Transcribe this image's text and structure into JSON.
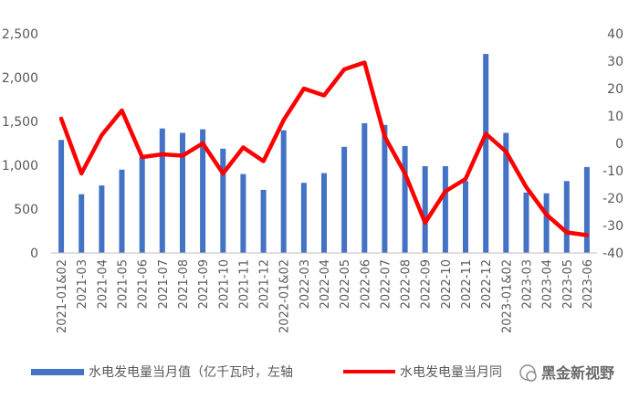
{
  "chart_data": {
    "type": "bar",
    "categories": [
      "2021-01&02",
      "2021-03",
      "2021-04",
      "2021-05",
      "2021-06",
      "2021-07",
      "2021-08",
      "2021-09",
      "2021-10",
      "2021-11",
      "2021-12",
      "2022-01&02",
      "2022-03",
      "2022-04",
      "2022-05",
      "2022-06",
      "2022-07",
      "2022-08",
      "2022-09",
      "2022-10",
      "2022-11",
      "2022-12",
      "2023-01&02",
      "2023-03",
      "2023-04",
      "2023-05",
      "2023-06"
    ],
    "series": [
      {
        "name": "水电发电量当月值（亿千瓦时，左轴",
        "type": "bar",
        "axis": "left",
        "color": "#4472C4",
        "values": [
          1290,
          670,
          770,
          950,
          1100,
          1420,
          1370,
          1410,
          1190,
          900,
          720,
          1400,
          800,
          910,
          1210,
          1480,
          1460,
          1220,
          990,
          990,
          820,
          2270,
          1370,
          690,
          680,
          820,
          980
        ]
      },
      {
        "name": "水电发电量当月同",
        "type": "line",
        "axis": "right",
        "color": "#FF0000",
        "values": [
          9,
          -11,
          3,
          12,
          -5,
          -4,
          -4.5,
          0,
          -11,
          -1.5,
          -6.5,
          8.5,
          20,
          17.5,
          27,
          29.5,
          2.5,
          -11,
          -29,
          -17.5,
          -13,
          3.5,
          -3,
          -16,
          -26,
          -32.5,
          -33.5
        ]
      }
    ],
    "y_left": {
      "min": 0,
      "max": 2500,
      "ticks": [
        "0",
        "500",
        "1,000",
        "1,500",
        "2,000",
        "2,500"
      ]
    },
    "y_right": {
      "min": -40,
      "max": 40,
      "ticks": [
        "-40",
        "-30",
        "-20",
        "-10",
        "0",
        "10",
        "20",
        "30",
        "40"
      ]
    },
    "legend_position": "bottom",
    "grid": false
  },
  "watermark": "黑金新视野"
}
